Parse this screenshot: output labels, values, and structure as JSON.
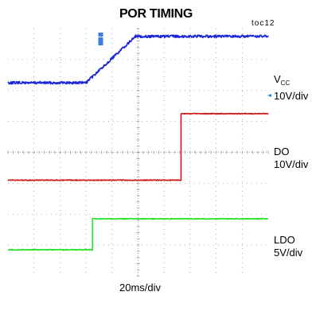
{
  "title": "POR TIMING",
  "chart_id": "toc12",
  "timebase": "20ms/div",
  "chart_data": {
    "type": "line",
    "title": "POR TIMING",
    "xlabel": "20ms/div",
    "ylabel": "",
    "x_divisions": 10,
    "y_divisions": 8,
    "grid": true,
    "background": "#ffffff",
    "series": [
      {
        "name": "VCC",
        "label_main": "V",
        "label_sub": "CC",
        "scale": "10V/div",
        "color": "#1b26d6",
        "x": [
          0.0,
          3.0,
          4.9,
          5.5,
          10.0
        ],
        "y": [
          6.25,
          6.25,
          7.75,
          7.75,
          7.75
        ]
      },
      {
        "name": "DO",
        "label_main": "DO",
        "label_sub": "",
        "scale": "10V/div",
        "color": "#cc1a1a",
        "x": [
          0.0,
          6.65,
          6.65,
          10.0
        ],
        "y": [
          3.1,
          3.1,
          5.25,
          5.25
        ]
      },
      {
        "name": "LDO",
        "label_main": "LDO",
        "label_sub": "",
        "scale": "5V/div",
        "color": "#26e026",
        "x": [
          0.0,
          3.25,
          3.25,
          10.0
        ],
        "y": [
          0.85,
          0.85,
          1.85,
          1.85
        ]
      }
    ]
  }
}
